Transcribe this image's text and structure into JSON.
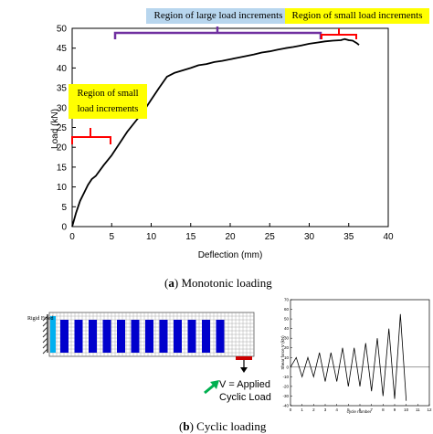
{
  "chart_data": {
    "type": "line",
    "xlabel": "Deflection (mm)",
    "ylabel": "Load (kN)",
    "xlim": [
      0,
      40
    ],
    "ylim": [
      0,
      50
    ],
    "xticks": [
      "0",
      "5",
      "10",
      "15",
      "20",
      "25",
      "30",
      "35",
      "40"
    ],
    "yticks": [
      "0",
      "5",
      "10",
      "15",
      "20",
      "25",
      "30",
      "35",
      "40",
      "45",
      "50"
    ],
    "grid": false,
    "series": [
      {
        "x": [
          0,
          0.5,
          1,
          1.5,
          2,
          2.5,
          3,
          4,
          5,
          6,
          7,
          8,
          9,
          10,
          11,
          12,
          13,
          14,
          15,
          16,
          17,
          18,
          19,
          20,
          21,
          22,
          23,
          24,
          25,
          26,
          27,
          28,
          29,
          30,
          31,
          32,
          33,
          34,
          34.5,
          35,
          35.5,
          36,
          36.3
        ],
        "y": [
          0,
          3.5,
          6.5,
          8.5,
          10.5,
          12,
          12.8,
          15.5,
          18,
          21,
          24,
          26.5,
          29,
          32,
          35,
          37.8,
          38.8,
          39.4,
          40,
          40.7,
          41,
          41.5,
          41.8,
          42.2,
          42.6,
          43,
          43.4,
          43.9,
          44.2,
          44.6,
          45,
          45.3,
          45.7,
          46.1,
          46.4,
          46.7,
          46.9,
          47,
          47.3,
          47,
          46.9,
          46.3,
          45.8
        ]
      }
    ],
    "annotations": {
      "large_region": "Region of large load increments",
      "small_region_right": "Region of small load increments",
      "small_region_left_line1": "Region of small",
      "small_region_left_line2": "load increments"
    }
  },
  "cyclic_chart": {
    "type": "line",
    "xlabel": "cycle number",
    "ylabel": "Shear force V (kN)",
    "xlim": [
      0,
      12
    ],
    "ylim": [
      -40,
      70
    ],
    "xticks": [
      "0",
      "1",
      "2",
      "3",
      "4",
      "5",
      "6",
      "7",
      "8",
      "9",
      "10",
      "11",
      "12"
    ],
    "yticks": [
      "-40",
      "-30",
      "-20",
      "-10",
      "0",
      "10",
      "20",
      "30",
      "40",
      "50",
      "60",
      "70"
    ],
    "series": [
      {
        "x": [
          0,
          0.5,
          1,
          1.5,
          2,
          2.5,
          3,
          3.5,
          4,
          4.5,
          5,
          5.5,
          6,
          6.5,
          7,
          7.5,
          8,
          8.5,
          9,
          9.5,
          10
        ],
        "y": [
          0,
          10,
          -10,
          10,
          -10,
          15,
          -15,
          15,
          -15,
          20,
          -20,
          20,
          -20,
          25,
          -25,
          30,
          -30,
          40,
          -33,
          55,
          -35
        ]
      }
    ]
  },
  "captions": {
    "a_label": "a",
    "a_text": "Monotonic loading",
    "b_label": "b",
    "b_text": "Cyclic loading"
  },
  "fe_model": {
    "support_label": "Rigid Fixed",
    "load_label_line1": "V = Applied",
    "load_label_line2": "Cyclic Load"
  },
  "colors": {
    "bracket_purple": "#7030a0",
    "bracket_red": "#ff0000",
    "box_blue": "#b8d6ee",
    "box_yellow": "#ffff00",
    "mesh_blue": "#0000cc",
    "arrow_green": "#00b050",
    "support_cyan": "#00b0f0"
  }
}
